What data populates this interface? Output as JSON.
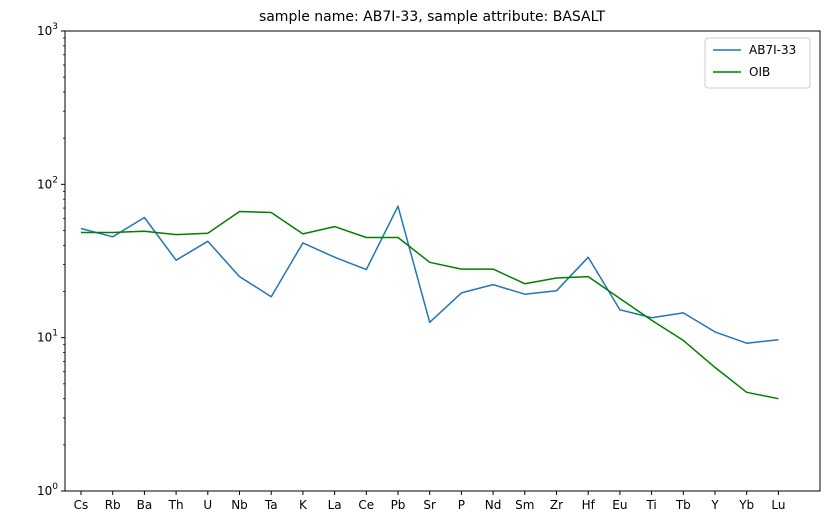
{
  "chart_data": {
    "type": "line",
    "title": "sample name: AB7I-33, sample attribute: BASALT",
    "xlabel": "",
    "ylabel": "",
    "y_scale": "log",
    "ylim": [
      1,
      1000
    ],
    "y_ticks": [
      {
        "value": 1,
        "base": "10",
        "exp": "0"
      },
      {
        "value": 10,
        "base": "10",
        "exp": "1"
      },
      {
        "value": 100,
        "base": "10",
        "exp": "2"
      },
      {
        "value": 1000,
        "base": "10",
        "exp": "3"
      }
    ],
    "grid": false,
    "legend_position": "top-right",
    "categories": [
      "Cs",
      "Rb",
      "Ba",
      "Th",
      "U",
      "Nb",
      "Ta",
      "K",
      "La",
      "Ce",
      "Pb",
      "Sr",
      "P",
      "Nd",
      "Sm",
      "Zr",
      "Hf",
      "Eu",
      "Ti",
      "Tb",
      "Y",
      "Yb",
      "Lu"
    ],
    "series": [
      {
        "name": "AB7I-33",
        "color": "#1f77b4",
        "values": [
          51.5,
          45.5,
          60.8,
          32.0,
          42.5,
          25.0,
          18.5,
          41.5,
          33.5,
          27.8,
          72.0,
          12.6,
          19.6,
          22.2,
          19.2,
          20.2,
          33.5,
          15.2,
          13.5,
          14.5,
          10.9,
          9.2,
          9.7
        ]
      },
      {
        "name": "OIB",
        "color": "#008000",
        "values": [
          48.5,
          48.5,
          49.5,
          47.0,
          48.0,
          66.5,
          65.5,
          47.5,
          53.0,
          45.0,
          45.0,
          31.0,
          28.0,
          28.0,
          22.5,
          24.5,
          25.0,
          18.0,
          13.0,
          9.6,
          6.4,
          4.4,
          4.0
        ]
      }
    ]
  }
}
